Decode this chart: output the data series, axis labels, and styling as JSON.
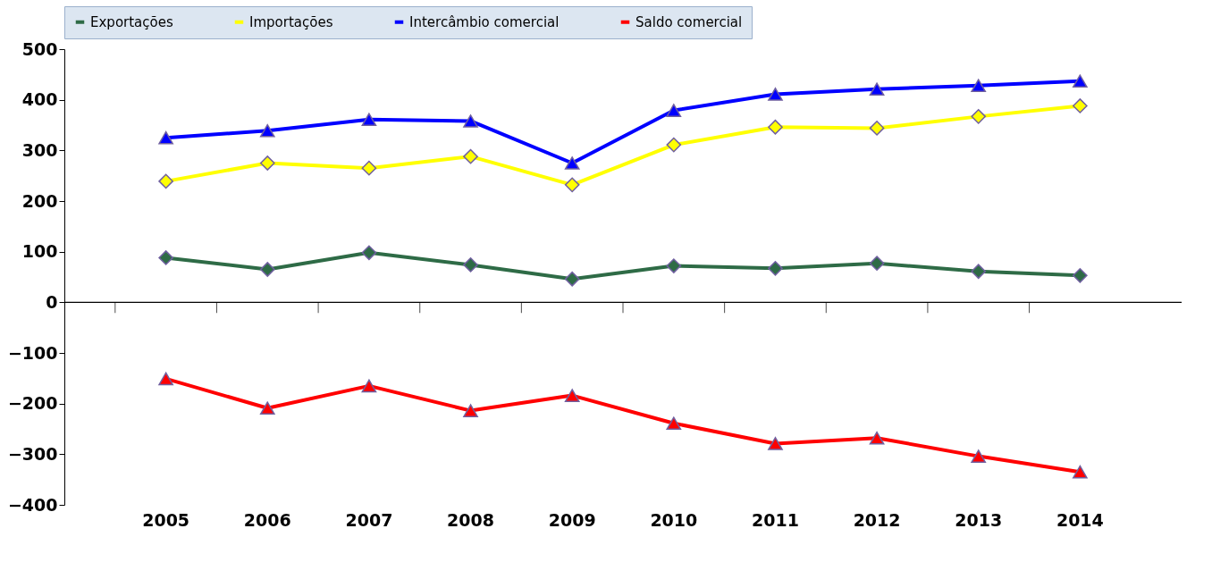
{
  "chart_data": {
    "type": "line",
    "categories": [
      "2005",
      "2006",
      "2007",
      "2008",
      "2009",
      "2010",
      "2011",
      "2012",
      "2013",
      "2014"
    ],
    "ylim": [
      -400,
      500
    ],
    "yticks": [
      -400,
      -300,
      -200,
      -100,
      0,
      100,
      200,
      300,
      400,
      500
    ],
    "grid": false,
    "legend": "top",
    "ref_lines": [
      {
        "axis": "y",
        "value": 0,
        "color": "#000000"
      }
    ],
    "series": [
      {
        "name": "Exportações",
        "color": "#2e6b46",
        "marker": "diamond",
        "values": [
          88,
          65,
          98,
          74,
          46,
          72,
          67,
          77,
          61,
          53
        ]
      },
      {
        "name": "Importações",
        "color": "#ffff00",
        "marker": "diamond",
        "values": [
          239,
          275,
          265,
          288,
          232,
          311,
          346,
          344,
          367,
          388
        ]
      },
      {
        "name": "Intercâmbio comercial",
        "color": "#0000ff",
        "marker": "triangle",
        "values": [
          325,
          339,
          361,
          358,
          275,
          379,
          411,
          421,
          428,
          437
        ]
      },
      {
        "name": "Saldo comercial",
        "color": "#ff0000",
        "marker": "triangle",
        "values": [
          -151,
          -209,
          -165,
          -214,
          -184,
          -239,
          -279,
          -268,
          -304,
          -335
        ]
      }
    ]
  }
}
